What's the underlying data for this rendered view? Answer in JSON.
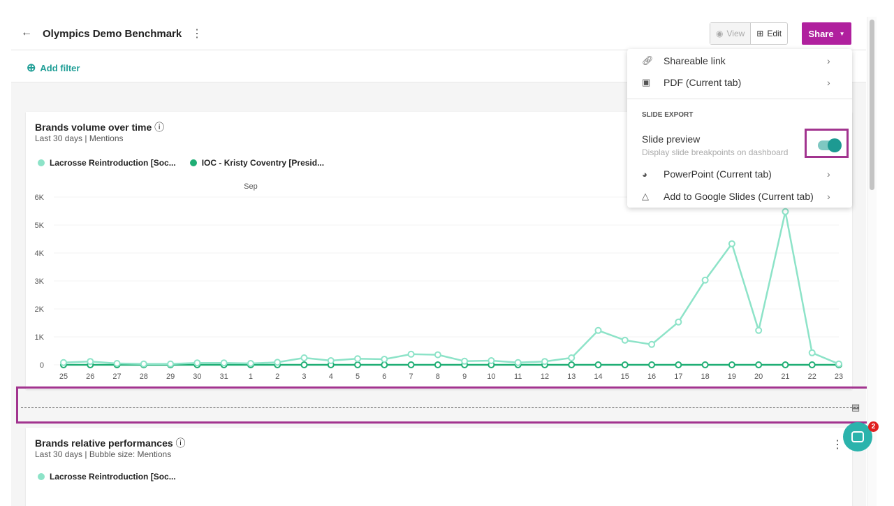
{
  "header": {
    "back_icon": "arrow-left-icon",
    "title": "Olympics Demo Benchmark",
    "view_label": "View",
    "edit_label": "Edit",
    "share_label": "Share"
  },
  "filters": {
    "add_filter_label": "Add filter"
  },
  "share_menu": {
    "items": [
      {
        "label": "Shareable link",
        "icon": "link-icon"
      },
      {
        "label": "PDF (Current tab)",
        "icon": "pdf-icon"
      }
    ],
    "section_title": "SLIDE EXPORT",
    "slide_preview": {
      "label": "Slide preview",
      "description": "Display slide breakpoints on dashboard",
      "enabled": true
    },
    "export_items": [
      {
        "label": "PowerPoint (Current tab)",
        "icon": "powerpoint-icon"
      },
      {
        "label": "Add to Google Slides (Current tab)",
        "icon": "google-slides-icon"
      }
    ]
  },
  "widgets": [
    {
      "title": "Brands volume over time",
      "subtitle": "Last 30 days | Mentions"
    },
    {
      "title": "Brands relative performances",
      "subtitle": "Last 30 days | Bubble size: Mentions",
      "legend": [
        "Lacrosse Reintroduction [Soc..."
      ]
    }
  ],
  "chat": {
    "badge_count": "2"
  },
  "chart_data": {
    "type": "line",
    "title": "Brands volume over time",
    "month_label": "Sep",
    "x": [
      "25",
      "26",
      "27",
      "28",
      "29",
      "30",
      "31",
      "1",
      "2",
      "3",
      "4",
      "5",
      "6",
      "7",
      "8",
      "9",
      "10",
      "11",
      "12",
      "13",
      "14",
      "15",
      "16",
      "17",
      "18",
      "19",
      "20",
      "21",
      "22",
      "23"
    ],
    "yticks": [
      "0",
      "1K",
      "2K",
      "3K",
      "4K",
      "5K",
      "6K"
    ],
    "ylim": [
      0,
      6000
    ],
    "series": [
      {
        "name": "Lacrosse Reintroduction [Soc...",
        "color": "#8de3c8",
        "values": [
          80,
          120,
          50,
          30,
          30,
          70,
          70,
          50,
          90,
          250,
          150,
          220,
          200,
          380,
          360,
          130,
          150,
          80,
          120,
          250,
          1230,
          880,
          730,
          1530,
          3030,
          4330,
          1230,
          5480,
          430,
          30
        ]
      },
      {
        "name": "IOC - Kristy Coventry [Presid...",
        "color": "#1fae74",
        "values": [
          0,
          0,
          0,
          0,
          0,
          0,
          0,
          0,
          0,
          0,
          0,
          0,
          0,
          0,
          0,
          0,
          0,
          0,
          0,
          0,
          0,
          0,
          0,
          0,
          0,
          0,
          0,
          0,
          0,
          0
        ]
      }
    ]
  }
}
